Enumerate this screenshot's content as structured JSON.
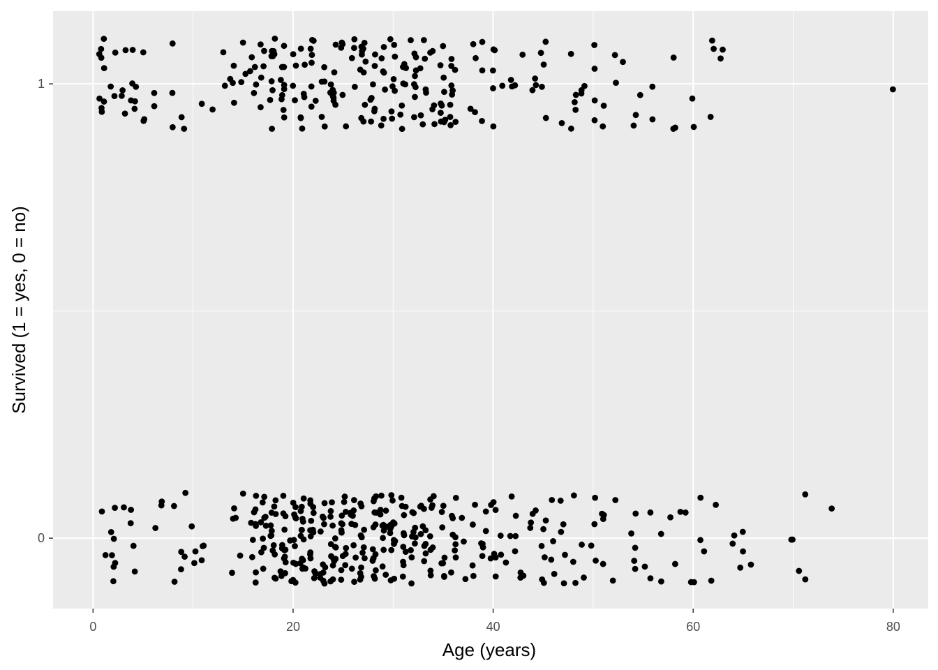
{
  "chart_data": {
    "type": "scatter",
    "title": "",
    "xlabel": "Age (years)",
    "ylabel": "Survived (1 = yes, 0 = no)",
    "xlim": [
      -4,
      83.5
    ],
    "ylim": [
      -0.155,
      1.16
    ],
    "x_ticks": [
      0,
      20,
      40,
      60,
      80
    ],
    "x_tick_labels": [
      "0",
      "20",
      "40",
      "60",
      "80"
    ],
    "y_ticks": [
      0,
      1
    ],
    "y_tick_labels": [
      "0",
      "1"
    ],
    "grid": true,
    "legend": "none",
    "jitter": "vertical jitter about 0 and 1",
    "colors": {
      "panel": "#ebebeb",
      "grid": "#ffffff",
      "point": "#000000"
    },
    "series": [
      {
        "values_survived_ages": [
          1,
          1,
          1,
          1,
          0.5,
          0.5,
          0.7,
          0.8,
          1,
          2,
          2,
          2,
          3,
          3,
          3,
          3,
          4,
          4,
          4,
          4,
          4,
          4,
          5,
          5,
          5,
          6,
          6,
          8,
          8,
          8,
          9,
          9,
          11,
          12,
          13,
          13,
          14,
          14,
          14,
          14,
          15,
          15,
          15,
          16,
          16,
          16,
          16,
          16,
          17,
          17,
          17,
          17,
          17,
          18,
          18,
          18,
          18,
          18,
          18,
          18,
          18,
          18,
          18,
          19,
          19,
          19,
          19,
          19,
          19,
          19,
          19,
          19,
          19,
          20,
          20,
          20,
          20,
          21,
          21,
          21,
          21,
          21,
          21,
          21,
          22,
          22,
          22,
          22,
          22,
          22,
          22,
          22,
          23,
          23,
          23,
          23,
          23,
          24,
          24,
          24,
          24,
          24,
          24,
          24,
          24,
          24,
          24,
          25,
          25,
          25,
          25,
          25,
          26,
          26,
          26,
          26,
          27,
          27,
          27,
          27,
          27,
          27,
          27,
          27,
          27,
          27,
          27,
          28,
          28,
          28,
          28,
          28,
          28,
          28,
          28,
          29,
          29,
          29,
          29,
          29,
          29,
          29,
          30,
          30,
          30,
          30,
          30,
          30,
          30,
          30,
          31,
          31,
          31,
          31,
          31,
          31,
          31,
          31,
          32,
          32,
          32,
          32,
          32,
          32,
          32,
          32,
          32,
          33,
          33,
          33,
          33,
          33,
          33,
          33,
          34,
          34,
          34,
          34,
          34,
          35,
          35,
          35,
          35,
          35,
          35,
          35,
          35,
          35,
          35,
          36,
          36,
          36,
          36,
          36,
          36,
          36,
          36,
          36,
          36,
          38,
          38,
          38,
          38,
          39,
          39,
          39,
          40,
          40,
          40,
          40,
          40,
          41,
          42,
          42,
          42,
          43,
          44,
          44,
          44,
          45,
          45,
          45,
          45,
          45,
          47,
          48,
          48,
          48,
          48,
          48,
          49,
          49,
          49,
          50,
          50,
          50,
          50,
          51,
          51,
          52,
          52,
          53,
          54,
          54,
          55,
          56,
          56,
          58,
          58,
          58,
          60,
          60,
          62,
          62,
          62,
          63,
          63,
          80
        ]
      },
      {
        "values_died_ages": [
          1,
          1,
          2,
          2,
          2,
          2,
          2,
          2,
          2,
          3,
          4,
          4,
          4,
          4,
          6,
          7,
          7,
          8,
          8,
          9,
          9,
          9,
          9,
          10,
          10,
          10,
          11,
          11,
          11,
          14,
          14,
          14,
          14,
          15,
          15,
          16,
          16,
          16,
          16,
          16,
          16,
          16,
          16,
          16,
          16,
          17,
          17,
          17,
          17,
          17,
          17,
          17,
          17,
          17,
          17,
          18,
          18,
          18,
          18,
          18,
          18,
          18,
          18,
          18,
          18,
          18,
          18,
          18,
          19,
          19,
          19,
          19,
          19,
          19,
          19,
          19,
          19,
          19,
          19,
          19,
          19,
          19,
          20,
          20,
          20,
          20,
          20,
          20,
          20,
          20,
          20,
          20,
          20,
          20,
          20,
          21,
          21,
          21,
          21,
          21,
          21,
          21,
          21,
          21,
          21,
          21,
          21,
          21,
          21,
          21,
          22,
          22,
          22,
          22,
          22,
          22,
          22,
          22,
          22,
          22,
          22,
          22,
          22,
          22,
          22,
          23,
          23,
          23,
          23,
          23,
          23,
          23,
          23,
          23,
          23,
          23,
          23,
          24,
          24,
          24,
          24,
          24,
          24,
          24,
          24,
          24,
          24,
          24,
          24,
          24,
          24,
          24,
          25,
          25,
          25,
          25,
          25,
          25,
          25,
          25,
          25,
          25,
          25,
          25,
          25,
          25,
          26,
          26,
          26,
          26,
          26,
          26,
          26,
          26,
          26,
          26,
          26,
          27,
          27,
          27,
          27,
          27,
          27,
          27,
          27,
          27,
          27,
          27,
          27,
          28,
          28,
          28,
          28,
          28,
          28,
          28,
          28,
          28,
          28,
          28,
          28,
          28,
          28,
          28,
          29,
          29,
          29,
          29,
          29,
          29,
          29,
          29,
          29,
          29,
          29,
          29,
          30,
          30,
          30,
          30,
          30,
          30,
          30,
          30,
          30,
          30,
          30,
          30,
          30,
          30,
          30,
          31,
          31,
          31,
          31,
          31,
          31,
          31,
          31,
          31,
          31,
          31,
          32,
          32,
          32,
          32,
          32,
          32,
          32,
          32,
          32,
          32,
          33,
          33,
          33,
          33,
          33,
          33,
          33,
          33,
          33,
          33,
          34,
          34,
          34,
          34,
          34,
          34,
          34,
          34,
          34,
          35,
          35,
          35,
          35,
          35,
          35,
          35,
          35,
          36,
          36,
          36,
          36,
          36,
          36,
          36,
          36,
          36,
          37,
          37,
          37,
          38,
          38,
          38,
          38,
          39,
          39,
          39,
          39,
          39,
          39,
          40,
          40,
          40,
          40,
          40,
          40,
          40,
          41,
          41,
          41,
          42,
          42,
          42,
          42,
          42,
          43,
          43,
          43,
          44,
          44,
          44,
          44,
          45,
          45,
          45,
          45,
          45,
          45,
          46,
          46,
          46,
          46,
          47,
          47,
          47,
          47,
          47,
          48,
          48,
          48,
          49,
          49,
          50,
          50,
          50,
          50,
          51,
          51,
          51,
          51,
          52,
          52,
          54,
          54,
          54,
          54,
          54,
          55,
          56,
          56,
          57,
          57,
          58,
          58,
          59,
          59,
          60,
          60,
          61,
          61,
          61,
          62,
          62,
          64,
          64,
          65,
          65,
          65,
          66,
          70,
          70,
          70.5,
          71,
          71,
          74
        ]
      }
    ]
  }
}
